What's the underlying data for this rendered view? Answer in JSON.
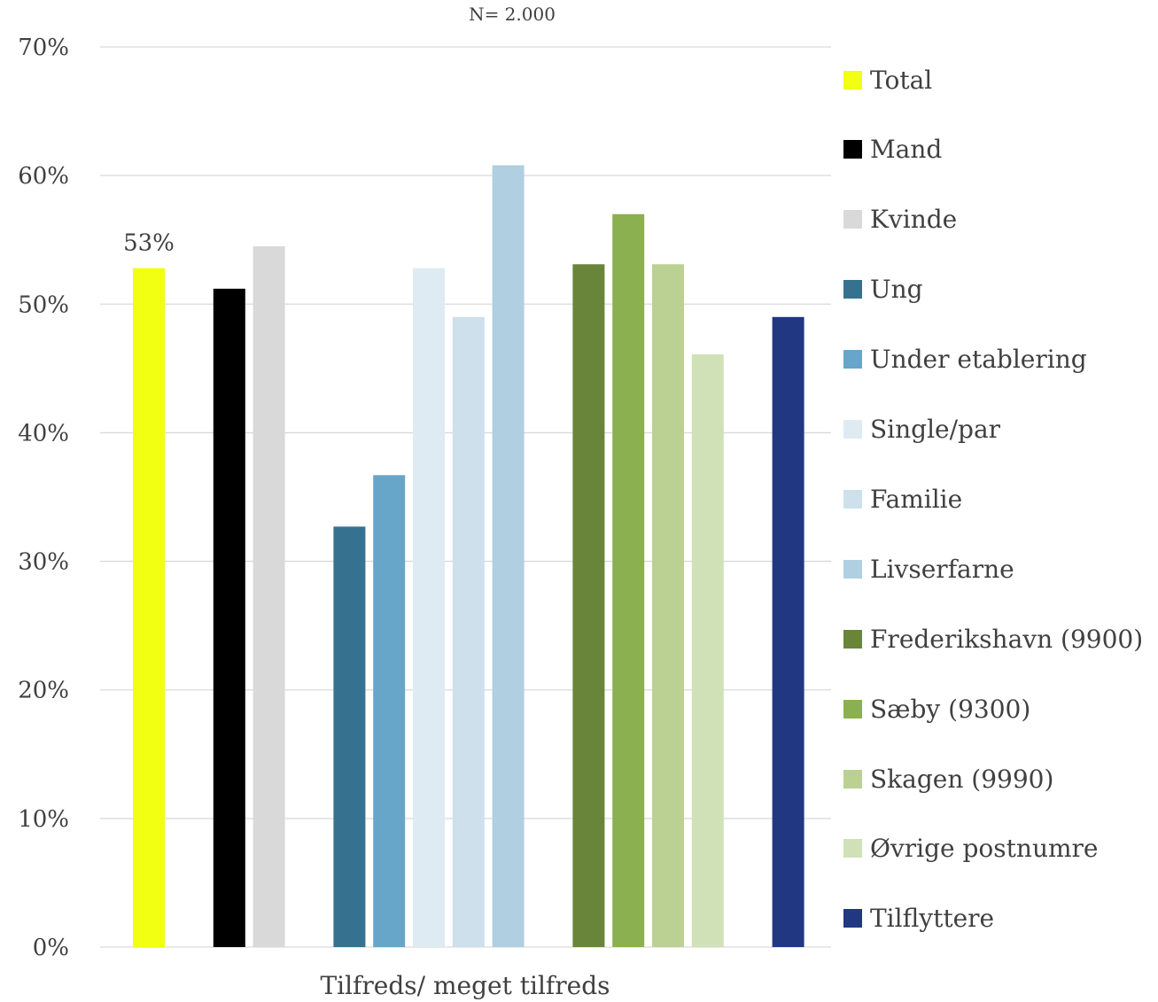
{
  "chart_data": {
    "type": "bar",
    "subtitle": "N= 2.000",
    "xlabel": "Tilfreds/ meget tilfreds",
    "ylabel": "",
    "ylim": [
      0,
      0.7
    ],
    "yticks": [
      "0%",
      "10%",
      "20%",
      "30%",
      "40%",
      "50%",
      "60%",
      "70%"
    ],
    "grid": true,
    "legend_position": "right",
    "categories": [
      "Tilfreds/ meget tilfreds"
    ],
    "series": [
      {
        "name": "Total",
        "value": 0.528,
        "color": "#f2ff12",
        "data_label": "53%"
      },
      {
        "name": "Mand",
        "value": 0.512,
        "color": "#000000"
      },
      {
        "name": "Kvinde",
        "value": 0.545,
        "color": "#d9d9d9"
      },
      {
        "name": "Ung",
        "value": 0.327,
        "color": "#36728f"
      },
      {
        "name": "Under etablering",
        "value": 0.367,
        "color": "#67a6c8"
      },
      {
        "name": "Single/par",
        "value": 0.528,
        "color": "#dfebf3"
      },
      {
        "name": "Familie",
        "value": 0.49,
        "color": "#cde0ec"
      },
      {
        "name": "Livserfarne",
        "value": 0.608,
        "color": "#b0cfe0"
      },
      {
        "name": "Frederikshavn (9900)",
        "value": 0.531,
        "color": "#68853a"
      },
      {
        "name": "Sæby (9300)",
        "value": 0.57,
        "color": "#8bb04f"
      },
      {
        "name": "Skagen (9990)",
        "value": 0.531,
        "color": "#bbd193"
      },
      {
        "name": "Øvrige postnumre",
        "value": 0.461,
        "color": "#d0e1b7"
      },
      {
        "name": "Tilflyttere",
        "value": 0.49,
        "color": "#213782"
      }
    ]
  }
}
